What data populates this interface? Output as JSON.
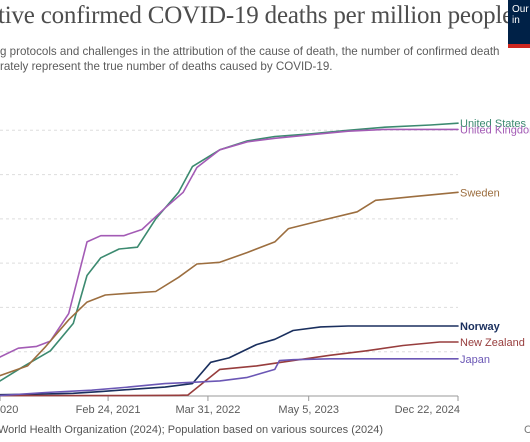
{
  "header": {
    "title": "tive confirmed COVID-19 deaths per million people",
    "subtitle_line1": "g protocols and challenges in the attribution of the cause of death, the number of confirmed deaths",
    "subtitle_line2": "rately represent the true number of deaths caused by COVID-19."
  },
  "logo": {
    "line1": "Our",
    "line2": "in",
    "bg": "#002147",
    "accent": "#ce261e"
  },
  "footer": {
    "source": " World Health Organization (2024); Population based on various sources (2024)",
    "mark": "C"
  },
  "chart_data": {
    "type": "line",
    "x_ticks": [
      {
        "label": "020",
        "t": 0.0
      },
      {
        "label": "Feb 24, 2021",
        "t": 1.18
      },
      {
        "label": "Mar 31, 2022",
        "t": 2.27
      },
      {
        "label": "May 5, 2023",
        "t": 3.37
      },
      {
        "label": "Dec 22, 2024",
        "t": 5.0
      }
    ],
    "xlim": [
      0,
      5.0
    ],
    "ylim": [
      0,
      3500
    ],
    "y_gridlines": [
      0,
      500,
      1000,
      1500,
      2000,
      2500,
      3000
    ],
    "grid": true,
    "series": [
      {
        "name": "United States",
        "color": "#3c8a70",
        "label_weight": "normal",
        "points": [
          [
            0,
            170
          ],
          [
            0.25,
            330
          ],
          [
            0.55,
            510
          ],
          [
            0.8,
            820
          ],
          [
            0.95,
            1360
          ],
          [
            1.1,
            1560
          ],
          [
            1.3,
            1660
          ],
          [
            1.5,
            1680
          ],
          [
            1.7,
            2000
          ],
          [
            1.95,
            2300
          ],
          [
            2.1,
            2590
          ],
          [
            2.4,
            2780
          ],
          [
            2.7,
            2880
          ],
          [
            3.0,
            2930
          ],
          [
            3.4,
            2960
          ],
          [
            3.8,
            3000
          ],
          [
            4.2,
            3035
          ],
          [
            4.7,
            3060
          ],
          [
            5.0,
            3080
          ]
        ]
      },
      {
        "name": "United Kingdom",
        "color": "#a35bb5",
        "label_weight": "normal",
        "points": [
          [
            0,
            440
          ],
          [
            0.2,
            540
          ],
          [
            0.4,
            560
          ],
          [
            0.55,
            620
          ],
          [
            0.75,
            930
          ],
          [
            0.95,
            1740
          ],
          [
            1.1,
            1810
          ],
          [
            1.35,
            1810
          ],
          [
            1.55,
            1880
          ],
          [
            1.8,
            2120
          ],
          [
            2.0,
            2300
          ],
          [
            2.15,
            2580
          ],
          [
            2.4,
            2780
          ],
          [
            2.7,
            2870
          ],
          [
            3.0,
            2910
          ],
          [
            3.4,
            2950
          ],
          [
            3.8,
            2990
          ],
          [
            4.2,
            3010
          ],
          [
            5.0,
            3010
          ]
        ]
      },
      {
        "name": "Sweden",
        "color": "#9c6e3f",
        "label_weight": "normal",
        "points": [
          [
            0,
            230
          ],
          [
            0.3,
            340
          ],
          [
            0.5,
            560
          ],
          [
            0.75,
            860
          ],
          [
            0.95,
            1060
          ],
          [
            1.15,
            1140
          ],
          [
            1.4,
            1160
          ],
          [
            1.7,
            1180
          ],
          [
            1.95,
            1340
          ],
          [
            2.15,
            1490
          ],
          [
            2.4,
            1510
          ],
          [
            2.7,
            1620
          ],
          [
            3.0,
            1740
          ],
          [
            3.15,
            1890
          ],
          [
            3.5,
            1980
          ],
          [
            3.9,
            2080
          ],
          [
            4.1,
            2210
          ],
          [
            4.5,
            2250
          ],
          [
            5.0,
            2300
          ]
        ]
      },
      {
        "name": "Norway",
        "color": "#1a2f5e",
        "label_weight": "bold",
        "points": [
          [
            0,
            15
          ],
          [
            0.4,
            20
          ],
          [
            0.8,
            30
          ],
          [
            1.1,
            50
          ],
          [
            1.5,
            80
          ],
          [
            1.8,
            100
          ],
          [
            2.1,
            140
          ],
          [
            2.3,
            380
          ],
          [
            2.5,
            430
          ],
          [
            2.8,
            580
          ],
          [
            3.0,
            640
          ],
          [
            3.2,
            740
          ],
          [
            3.5,
            780
          ],
          [
            3.8,
            790
          ],
          [
            4.2,
            790
          ],
          [
            5.0,
            790
          ]
        ]
      },
      {
        "name": "New Zealand",
        "color": "#973d3d",
        "label_weight": "normal",
        "points": [
          [
            0,
            5
          ],
          [
            0.8,
            5
          ],
          [
            1.4,
            5
          ],
          [
            1.95,
            8
          ],
          [
            2.05,
            10
          ],
          [
            2.4,
            300
          ],
          [
            2.8,
            340
          ],
          [
            3.2,
            400
          ],
          [
            3.6,
            460
          ],
          [
            4.0,
            510
          ],
          [
            4.4,
            570
          ],
          [
            4.8,
            610
          ],
          [
            5.0,
            610
          ]
        ]
      },
      {
        "name": "Japan",
        "color": "#6b57b5",
        "label_weight": "normal",
        "points": [
          [
            0,
            5
          ],
          [
            0.5,
            40
          ],
          [
            1.0,
            65
          ],
          [
            1.4,
            100
          ],
          [
            1.8,
            140
          ],
          [
            2.1,
            155
          ],
          [
            2.4,
            170
          ],
          [
            2.7,
            210
          ],
          [
            3.0,
            300
          ],
          [
            3.05,
            400
          ],
          [
            3.2,
            410
          ],
          [
            3.6,
            420
          ],
          [
            4.2,
            420
          ],
          [
            5.0,
            420
          ]
        ]
      }
    ]
  }
}
